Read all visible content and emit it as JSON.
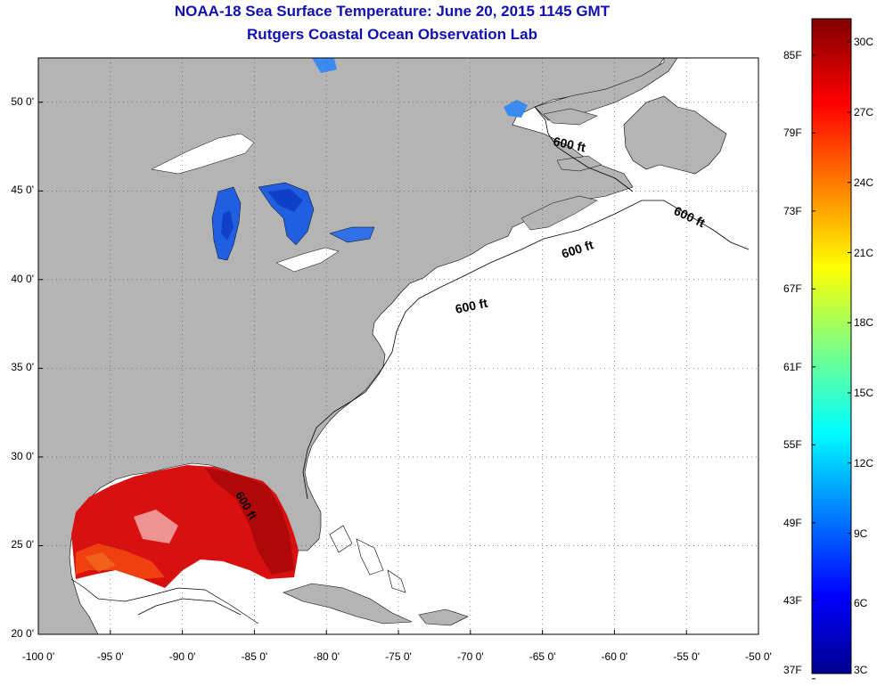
{
  "title_line1": "NOAA-18 Sea Surface Temperature:  June 20, 2015 1145 GMT",
  "title_line2": "Rutgers Coastal Ocean Observation Lab",
  "x_axis": {
    "ticks": [
      {
        "value": -100,
        "label": "-100 0'"
      },
      {
        "value": -95,
        "label": "-95 0'"
      },
      {
        "value": -90,
        "label": "-90 0'"
      },
      {
        "value": -85,
        "label": "-85 0'"
      },
      {
        "value": -80,
        "label": "-80 0'"
      },
      {
        "value": -75,
        "label": "-75 0'"
      },
      {
        "value": -70,
        "label": "-70 0'"
      },
      {
        "value": -65,
        "label": "-65 0'"
      },
      {
        "value": -60,
        "label": "-60 0'"
      },
      {
        "value": -55,
        "label": "-55 0'"
      },
      {
        "value": -50,
        "label": "-50 0'"
      }
    ],
    "range": [
      -100,
      -50
    ]
  },
  "y_axis": {
    "ticks": [
      {
        "value": 50,
        "label": "50 0'"
      },
      {
        "value": 45,
        "label": "45 0'"
      },
      {
        "value": 40,
        "label": "40 0'"
      },
      {
        "value": 35,
        "label": "35 0'"
      },
      {
        "value": 30,
        "label": "30 0'"
      },
      {
        "value": 25,
        "label": "25 0'"
      },
      {
        "value": 20,
        "label": "20 0'"
      }
    ],
    "range": [
      20,
      52.5
    ]
  },
  "contour_label": "600 ft",
  "colorbar": {
    "fahrenheit": [
      {
        "value": 85,
        "label": "85F"
      },
      {
        "value": 79,
        "label": "79F"
      },
      {
        "value": 73,
        "label": "73F"
      },
      {
        "value": 67,
        "label": "67F"
      },
      {
        "value": 61,
        "label": "61F"
      },
      {
        "value": 55,
        "label": "55F"
      },
      {
        "value": 49,
        "label": "49F"
      },
      {
        "value": 43,
        "label": "43F"
      },
      {
        "value": 37,
        "label": "37F"
      }
    ],
    "celsius": [
      {
        "value": 30,
        "label": "30C"
      },
      {
        "value": 27,
        "label": "27C"
      },
      {
        "value": 24,
        "label": "24C"
      },
      {
        "value": 21,
        "label": "21C"
      },
      {
        "value": 18,
        "label": "18C"
      },
      {
        "value": 15,
        "label": "15C"
      },
      {
        "value": 12,
        "label": "12C"
      },
      {
        "value": 9,
        "label": "9C"
      },
      {
        "value": 6,
        "label": "6C"
      },
      {
        "value": 3,
        "label": "3C"
      }
    ],
    "range_c": [
      3,
      31
    ]
  },
  "colors": {
    "land": "#b4b4b4",
    "no_data": "#ffffff",
    "title": "#1010b0",
    "gulf_sst": "#d81010"
  }
}
